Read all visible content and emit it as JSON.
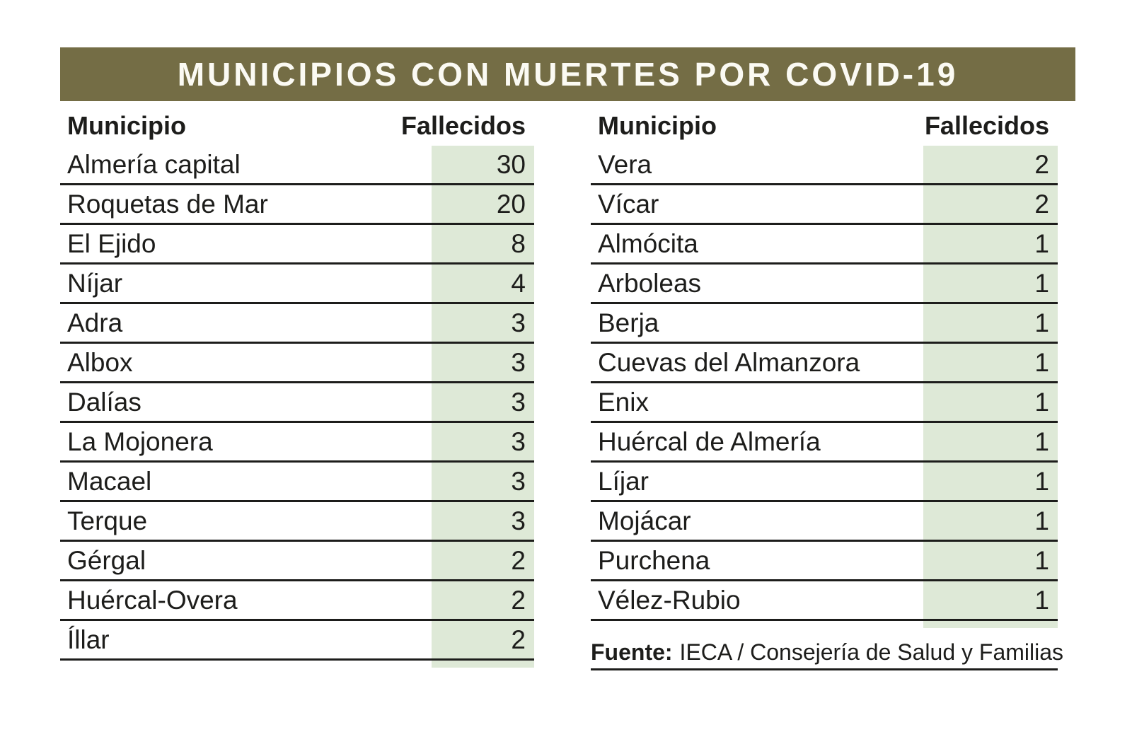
{
  "title": "MUNICIPIOS CON MUERTES POR COVID-19",
  "tables": [
    {
      "header": {
        "municipio": "Municipio",
        "fallecidos": "Fallecidos"
      },
      "rows": [
        {
          "name": "Almería capital",
          "value": "30"
        },
        {
          "name": "Roquetas de Mar",
          "value": "20"
        },
        {
          "name": "El Ejido",
          "value": "8"
        },
        {
          "name": "Níjar",
          "value": "4"
        },
        {
          "name": "Adra",
          "value": "3"
        },
        {
          "name": "Albox",
          "value": "3"
        },
        {
          "name": "Dalías",
          "value": "3"
        },
        {
          "name": "La Mojonera",
          "value": "3"
        },
        {
          "name": "Macael",
          "value": "3"
        },
        {
          "name": "Terque",
          "value": "3"
        },
        {
          "name": "Gérgal",
          "value": "2"
        },
        {
          "name": "Huércal-Overa",
          "value": "2"
        },
        {
          "name": "Íllar",
          "value": "2"
        }
      ]
    },
    {
      "header": {
        "municipio": "Municipio",
        "fallecidos": "Fallecidos"
      },
      "rows": [
        {
          "name": "Vera",
          "value": "2"
        },
        {
          "name": "Vícar",
          "value": "2"
        },
        {
          "name": "Almócita",
          "value": "1"
        },
        {
          "name": "Arboleas",
          "value": "1"
        },
        {
          "name": "Berja",
          "value": "1"
        },
        {
          "name": "Cuevas del Almanzora",
          "value": "1"
        },
        {
          "name": "Enix",
          "value": "1"
        },
        {
          "name": "Huércal de Almería",
          "value": "1"
        },
        {
          "name": "Líjar",
          "value": "1"
        },
        {
          "name": "Mojácar",
          "value": "1"
        },
        {
          "name": "Purchena",
          "value": "1"
        },
        {
          "name": "Vélez-Rubio",
          "value": "1"
        }
      ]
    }
  ],
  "footer": {
    "label": "Fuente:",
    "text": "IECA / Consejería de Salud y Familias"
  },
  "colors": {
    "title_bg": "#746d45",
    "title_text": "#fbfaf3",
    "value_bg": "#dee9d7",
    "text": "#1d1d1b"
  },
  "chart_data": {
    "type": "table",
    "title": "MUNICIPIOS CON MUERTES POR COVID-19",
    "columns": [
      "Municipio",
      "Fallecidos"
    ],
    "rows": [
      [
        "Almería capital",
        30
      ],
      [
        "Roquetas de Mar",
        20
      ],
      [
        "El Ejido",
        8
      ],
      [
        "Níjar",
        4
      ],
      [
        "Adra",
        3
      ],
      [
        "Albox",
        3
      ],
      [
        "Dalías",
        3
      ],
      [
        "La Mojonera",
        3
      ],
      [
        "Macael",
        3
      ],
      [
        "Terque",
        3
      ],
      [
        "Gérgal",
        2
      ],
      [
        "Huércal-Overa",
        2
      ],
      [
        "Íllar",
        2
      ],
      [
        "Vera",
        2
      ],
      [
        "Vícar",
        2
      ],
      [
        "Almócita",
        1
      ],
      [
        "Arboleas",
        1
      ],
      [
        "Berja",
        1
      ],
      [
        "Cuevas del Almanzora",
        1
      ],
      [
        "Enix",
        1
      ],
      [
        "Huércal de Almería",
        1
      ],
      [
        "Líjar",
        1
      ],
      [
        "Mojácar",
        1
      ],
      [
        "Purchena",
        1
      ],
      [
        "Vélez-Rubio",
        1
      ]
    ],
    "source": "Fuente: IECA / Consejería de Salud y Familias",
    "layout": "two side-by-side table halves, value column shaded light green"
  }
}
